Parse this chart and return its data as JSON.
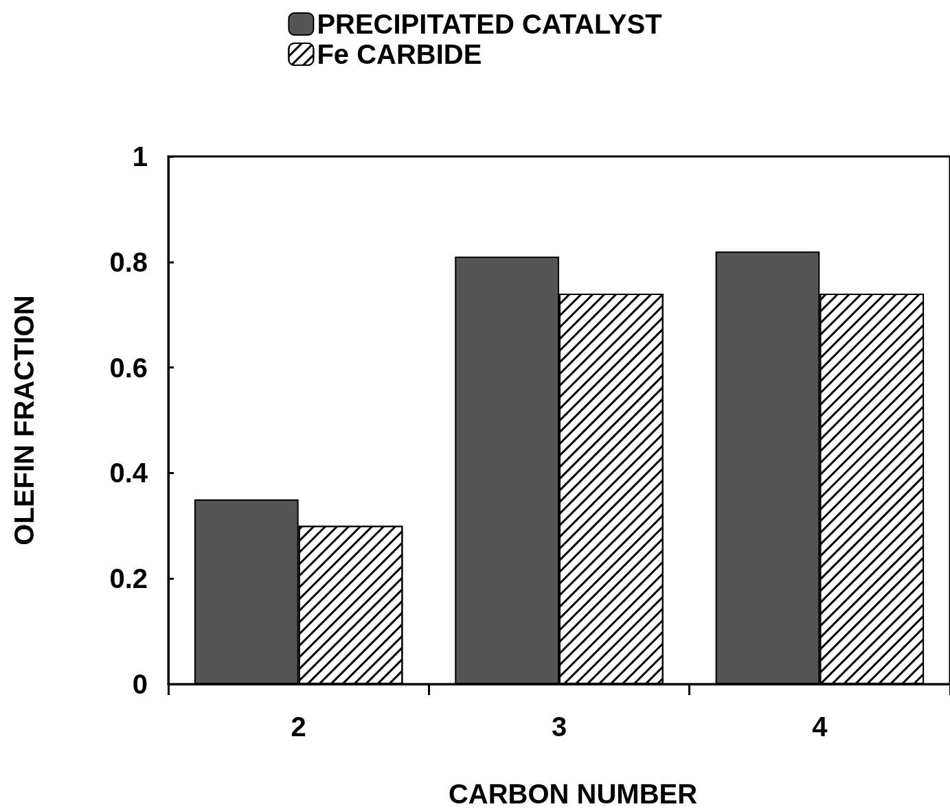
{
  "chart_data": {
    "type": "bar",
    "xlabel": "CARBON NUMBER",
    "ylabel": "OLEFIN FRACTION",
    "categories": [
      "2",
      "3",
      "4"
    ],
    "series": [
      {
        "name": "PRECIPITATED CATALYST",
        "color": "#555555",
        "values": [
          0.35,
          0.81,
          0.82
        ]
      },
      {
        "name": "Fe CARBIDE",
        "color": "#ffffff",
        "values": [
          0.3,
          0.74,
          0.74
        ]
      }
    ],
    "ylim": [
      0,
      1
    ],
    "yticks": [
      0,
      0.2,
      0.4,
      0.6,
      0.8,
      1
    ],
    "grid": false,
    "legend": "top"
  }
}
